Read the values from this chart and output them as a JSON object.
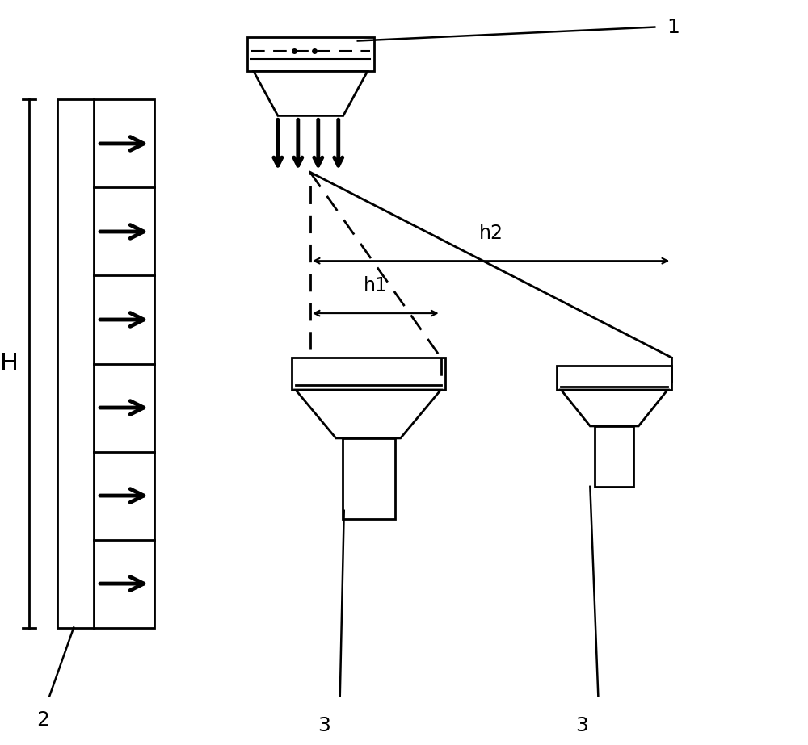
{
  "bg_color": "#ffffff",
  "line_color": "#000000",
  "label_1": "1",
  "label_2": "2",
  "label_3": "3",
  "label_H": "H",
  "label_h1": "h1",
  "label_h2": "h2",
  "figw": 10.0,
  "figh": 9.23
}
